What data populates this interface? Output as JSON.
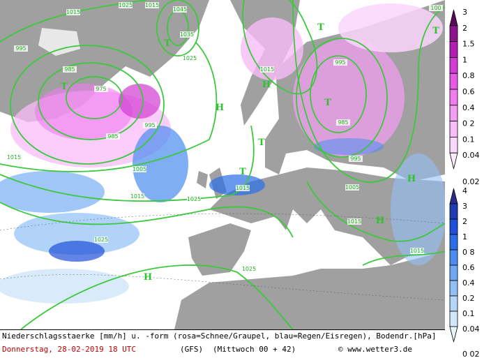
{
  "map": {
    "isobar_labels": [
      "1015",
      "1025",
      "1015",
      "1045",
      "1035",
      "1025",
      "995",
      "985",
      "975",
      "995",
      "985",
      "1015",
      "1005",
      "1015",
      "1025",
      "1025",
      "1015",
      "1025",
      "995",
      "985",
      "995",
      "1005",
      "1015",
      "1015",
      "1015",
      "100"
    ],
    "pressure_centers": [
      "H",
      "H",
      "T",
      "T",
      "T",
      "T",
      "T",
      "T",
      "H",
      "H",
      "H",
      "T"
    ]
  },
  "legend": {
    "snow": {
      "labels": [
        "3",
        "2",
        "1.5",
        "1",
        "0.8",
        "0.6",
        "0.4",
        "0 2",
        "0.1",
        "0.04",
        "0.02"
      ],
      "colors": [
        "#5a0a5a",
        "#8c148c",
        "#b21eb2",
        "#d23cd2",
        "#e65ae6",
        "#f07cf0",
        "#f59ef5",
        "#f8bcf8",
        "#fbd6fb",
        "#fdeafd"
      ]
    },
    "rain": {
      "labels": [
        "4",
        "3",
        "2",
        "1",
        "0 8",
        "0.6",
        "0.4",
        "0.2",
        "0.1",
        "0.04",
        "0 02"
      ],
      "colors": [
        "#2a2a8a",
        "#1e3cb4",
        "#2050d8",
        "#2a6ee8",
        "#4a8cf0",
        "#6ea8f4",
        "#92c0f6",
        "#b4d6f8",
        "#d2e8fa",
        "#e8f4fc"
      ]
    }
  },
  "caption": {
    "line1": "Niederschlagsstaerke [mm/h] u. -form (rosa=Schnee/Graupel, blau=Regen/Eisregen), Bodendr.[hPa]",
    "date": "Donnerstag, 28-02-2019  18 UTC",
    "model": "(GFS)",
    "run": "(Mittwoch 00 + 42)",
    "credit": "© www.wetter3.de"
  }
}
